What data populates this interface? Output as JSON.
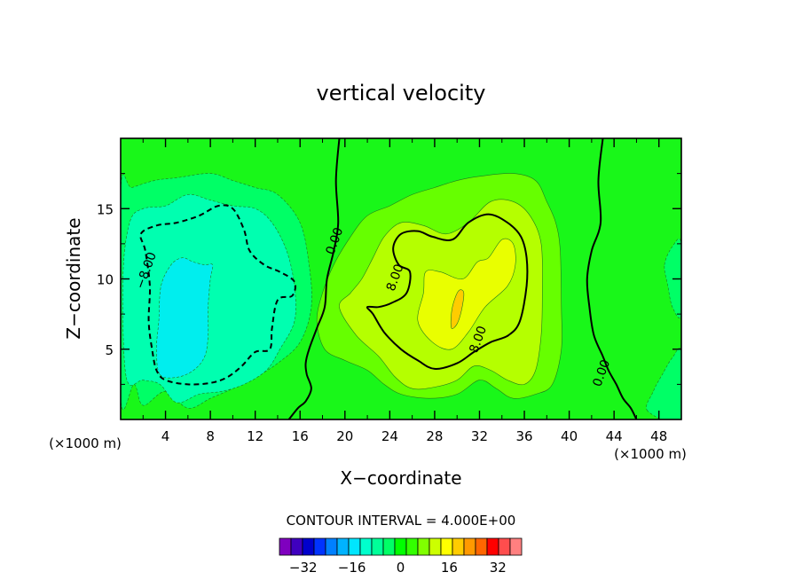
{
  "chart_data": {
    "type": "contour",
    "title": "vertical velocity",
    "xlabel": "X−coordinate",
    "ylabel": "Z−coordinate",
    "x_unit_left": "(×1000 m)",
    "x_unit_right": "(×1000 m)",
    "xlim": [
      0,
      50
    ],
    "ylim": [
      0,
      20
    ],
    "x_ticks": [
      4,
      8,
      12,
      16,
      20,
      24,
      28,
      32,
      36,
      40,
      44,
      48
    ],
    "y_ticks": [
      5,
      10,
      15
    ],
    "contour_interval_text": "CONTOUR INTERVAL = 4.000E+00",
    "contour_interval": 4,
    "contour_labels": [
      {
        "text": "−8.00",
        "x": 2.6,
        "y": 10.5
      },
      {
        "text": "0.00",
        "x": 19.4,
        "y": 12.6
      },
      {
        "text": "8.00",
        "x": 24.8,
        "y": 10.0
      },
      {
        "text": "8.00",
        "x": 32.2,
        "y": 5.6
      },
      {
        "text": "0.00",
        "x": 43.2,
        "y": 3.2
      }
    ],
    "colorbar": {
      "levels": [
        -36,
        -32,
        -28,
        -24,
        -20,
        -16,
        -12,
        -8,
        -4,
        0,
        4,
        8,
        12,
        16,
        20,
        24,
        28,
        32,
        36
      ],
      "colors": [
        "#7f00bf",
        "#3f00bf",
        "#0000cc",
        "#0033ff",
        "#0080ff",
        "#00b3ff",
        "#00e6ff",
        "#00ffcc",
        "#00ff99",
        "#00ff66",
        "#00ff00",
        "#33ff00",
        "#80ff00",
        "#ccff00",
        "#ffff00",
        "#ffcc00",
        "#ff9900",
        "#ff6600",
        "#ff0000",
        "#ff4d4d",
        "#ff8080"
      ],
      "tick_labels": [
        {
          "value": -32,
          "text": "−32"
        },
        {
          "value": -16,
          "text": "−16"
        },
        {
          "value": 0,
          "text": "0"
        },
        {
          "value": 16,
          "text": "16"
        },
        {
          "value": 32,
          "text": "32"
        }
      ]
    },
    "regions": [
      {
        "name": "background",
        "value": 2,
        "color": "#19f719",
        "path": [
          [
            0,
            0
          ],
          [
            50,
            0
          ],
          [
            50,
            20
          ],
          [
            0,
            20
          ]
        ]
      },
      {
        "name": "upper-left-negative",
        "value": -2,
        "color": "#00ff66",
        "path": [
          [
            0,
            1.5
          ],
          [
            1.2,
            2.5
          ],
          [
            2,
            1
          ],
          [
            4,
            2
          ],
          [
            6,
            0.8
          ],
          [
            8,
            1.5
          ],
          [
            10,
            2.2
          ],
          [
            12,
            3
          ],
          [
            14,
            4
          ],
          [
            16,
            5.5
          ],
          [
            17,
            8
          ],
          [
            16.8,
            11
          ],
          [
            16,
            14
          ],
          [
            14,
            16
          ],
          [
            12,
            16.5
          ],
          [
            10,
            17
          ],
          [
            8,
            17.5
          ],
          [
            5,
            17.2
          ],
          [
            3,
            17
          ],
          [
            1,
            16.5
          ],
          [
            0,
            16.3
          ]
        ]
      },
      {
        "name": "upper-left-neg6",
        "value": -6,
        "color": "#00ffb0",
        "path": [
          [
            0.5,
            3
          ],
          [
            2,
            2.8
          ],
          [
            3.5,
            2.5
          ],
          [
            5,
            1.2
          ],
          [
            7,
            1.8
          ],
          [
            9,
            2
          ],
          [
            11,
            2.5
          ],
          [
            13,
            3.5
          ],
          [
            14.2,
            5
          ],
          [
            15.5,
            7
          ],
          [
            15.5,
            9.5
          ],
          [
            14.8,
            12
          ],
          [
            13.5,
            14
          ],
          [
            12,
            15
          ],
          [
            10,
            15.2
          ],
          [
            8,
            15.6
          ],
          [
            6,
            16
          ],
          [
            4,
            15.2
          ],
          [
            2,
            15
          ],
          [
            0.8,
            14
          ],
          [
            0.2,
            10
          ]
        ]
      },
      {
        "name": "cyan-core",
        "value": -10,
        "color": "#00eeee",
        "path": [
          [
            3.5,
            3.2
          ],
          [
            5,
            3
          ],
          [
            6.5,
            3.5
          ],
          [
            7.5,
            4.5
          ],
          [
            7.8,
            6
          ],
          [
            7.8,
            8
          ],
          [
            8,
            10
          ],
          [
            8.2,
            11
          ],
          [
            7.5,
            11
          ],
          [
            6.5,
            11.2
          ],
          [
            5.5,
            11.5
          ],
          [
            4.5,
            11
          ],
          [
            3.6,
            9.5
          ],
          [
            3.4,
            7
          ],
          [
            3.2,
            5
          ]
        ]
      },
      {
        "name": "upper-right-positive",
        "value": 6,
        "color": "#66ff00",
        "path": [
          [
            17.5,
            7
          ],
          [
            18.2,
            5
          ],
          [
            20,
            4.2
          ],
          [
            22,
            3.5
          ],
          [
            23.5,
            2.5
          ],
          [
            25,
            1.8
          ],
          [
            27.5,
            1.5
          ],
          [
            30,
            1.8
          ],
          [
            32,
            2.8
          ],
          [
            33.5,
            2.2
          ],
          [
            35,
            1.5
          ],
          [
            37,
            1.8
          ],
          [
            38.5,
            2.5
          ],
          [
            39.3,
            5
          ],
          [
            39.3,
            8
          ],
          [
            39.2,
            12
          ],
          [
            38.8,
            14
          ],
          [
            38,
            15.5
          ],
          [
            37,
            17
          ],
          [
            35,
            17.5
          ],
          [
            32,
            17.3
          ],
          [
            30,
            17
          ],
          [
            28,
            16.5
          ],
          [
            26,
            16
          ],
          [
            24,
            15.2
          ],
          [
            22,
            14.5
          ],
          [
            20.5,
            13
          ],
          [
            19,
            11
          ],
          [
            18,
            9
          ]
        ]
      },
      {
        "name": "yellow-green-region",
        "value": 12,
        "color": "#b5ff00",
        "path": [
          [
            19.5,
            8
          ],
          [
            21,
            6
          ],
          [
            23,
            4.5
          ],
          [
            24.5,
            3
          ],
          [
            26,
            2.2
          ],
          [
            28,
            2.3
          ],
          [
            30,
            2.8
          ],
          [
            31.5,
            3.8
          ],
          [
            33,
            3.5
          ],
          [
            34.5,
            2.8
          ],
          [
            36,
            2.5
          ],
          [
            37,
            3.5
          ],
          [
            37.5,
            6
          ],
          [
            37.6,
            9
          ],
          [
            37.5,
            12.5
          ],
          [
            36.5,
            14.5
          ],
          [
            35,
            15.5
          ],
          [
            33,
            15.5
          ],
          [
            31,
            14
          ],
          [
            29,
            13.2
          ],
          [
            27,
            13.8
          ],
          [
            25,
            14
          ],
          [
            23.5,
            13
          ],
          [
            22.5,
            11.5
          ],
          [
            21.5,
            10
          ],
          [
            20.5,
            9
          ]
        ]
      },
      {
        "name": "yellow-core",
        "value": 16,
        "color": "#e9ff00",
        "path": [
          [
            26.5,
            7
          ],
          [
            27.8,
            5.5
          ],
          [
            29.5,
            5
          ],
          [
            31,
            6.2
          ],
          [
            32.5,
            8
          ],
          [
            34.5,
            9.5
          ],
          [
            35.2,
            11
          ],
          [
            35,
            12.5
          ],
          [
            34,
            12.8
          ],
          [
            32.8,
            11.5
          ],
          [
            31.8,
            11.2
          ],
          [
            30.5,
            10
          ],
          [
            28.5,
            10.5
          ],
          [
            27.2,
            10.5
          ],
          [
            27,
            9
          ]
        ]
      },
      {
        "name": "orange-core",
        "value": 20,
        "color": "#ffcc00",
        "path": [
          [
            29.5,
            6.5
          ],
          [
            30,
            6.8
          ],
          [
            30.4,
            7.8
          ],
          [
            30.6,
            9
          ],
          [
            30.2,
            9.2
          ],
          [
            29.8,
            8.6
          ],
          [
            29.5,
            7.6
          ]
        ]
      },
      {
        "name": "right-edge-negative",
        "value": -2,
        "color": "#00ff66",
        "path": [
          [
            48.5,
            11
          ],
          [
            49.2,
            12.3
          ],
          [
            50,
            12.5
          ],
          [
            50,
            7.5
          ],
          [
            49.2,
            8
          ],
          [
            48.8,
            9.5
          ]
        ]
      },
      {
        "name": "lower-right-negative",
        "value": -2,
        "color": "#00ff66",
        "path": [
          [
            47,
            0.6
          ],
          [
            47.5,
            2
          ],
          [
            48.3,
            3.2
          ],
          [
            49.2,
            4.4
          ],
          [
            50,
            4.8
          ],
          [
            50,
            0
          ]
        ]
      }
    ],
    "contour_lines": [
      {
        "value": 0,
        "style": "solid",
        "path": [
          [
            19.5,
            20
          ],
          [
            19.2,
            17
          ],
          [
            19.4,
            14
          ],
          [
            19,
            12
          ],
          [
            18.4,
            10
          ],
          [
            18.2,
            8
          ],
          [
            17.5,
            6.5
          ],
          [
            16.8,
            5
          ],
          [
            16.5,
            4
          ],
          [
            16.6,
            3.2
          ],
          [
            17,
            2.2
          ],
          [
            16.5,
            1.3
          ],
          [
            15.8,
            0.8
          ],
          [
            15,
            0
          ]
        ]
      },
      {
        "value": 0,
        "style": "solid",
        "path": [
          [
            43,
            20
          ],
          [
            42.6,
            17
          ],
          [
            42.8,
            14
          ],
          [
            42,
            12
          ],
          [
            41.6,
            10
          ],
          [
            41.8,
            8
          ],
          [
            42.2,
            6
          ],
          [
            43,
            4.5
          ],
          [
            43.5,
            3.5
          ],
          [
            44.2,
            2.5
          ],
          [
            44.8,
            1.5
          ],
          [
            45.5,
            0.8
          ],
          [
            46,
            0
          ]
        ]
      },
      {
        "value": 8,
        "style": "solid",
        "path": [
          [
            22,
            8
          ],
          [
            22.5,
            7.5
          ],
          [
            23.5,
            6.2
          ],
          [
            25,
            5
          ],
          [
            26.5,
            4.2
          ],
          [
            28,
            3.6
          ],
          [
            30,
            4
          ],
          [
            31.5,
            4.8
          ],
          [
            33,
            5.5
          ],
          [
            34.6,
            6
          ],
          [
            35.6,
            7
          ],
          [
            36.2,
            9.5
          ],
          [
            36.2,
            11.5
          ],
          [
            35.7,
            13
          ],
          [
            34.5,
            14
          ],
          [
            32.8,
            14.6
          ],
          [
            31,
            14
          ],
          [
            29.6,
            12.8
          ],
          [
            27.8,
            13
          ],
          [
            26.5,
            13.4
          ],
          [
            25,
            13.2
          ],
          [
            24.3,
            12.2
          ],
          [
            24.8,
            11
          ],
          [
            25.8,
            10.5
          ],
          [
            25.5,
            9
          ],
          [
            24.2,
            8.3
          ],
          [
            23,
            8
          ]
        ]
      },
      {
        "value": -8,
        "style": "dashed",
        "path": [
          [
            1.8,
            13.2
          ],
          [
            3.2,
            13.8
          ],
          [
            5,
            14
          ],
          [
            7,
            14.5
          ],
          [
            8.7,
            15.2
          ],
          [
            10,
            15
          ],
          [
            11,
            13.5
          ],
          [
            11.5,
            12
          ],
          [
            12.8,
            11
          ],
          [
            14.2,
            10.5
          ],
          [
            15.5,
            9.8
          ],
          [
            15.3,
            8.8
          ],
          [
            14,
            8.5
          ],
          [
            13.5,
            6.5
          ],
          [
            13.3,
            5
          ],
          [
            12,
            4.8
          ],
          [
            10.8,
            3.8
          ],
          [
            9.5,
            3
          ],
          [
            8,
            2.6
          ],
          [
            6,
            2.5
          ],
          [
            4,
            2.8
          ],
          [
            3.2,
            3.5
          ],
          [
            2.8,
            5
          ],
          [
            2.5,
            7
          ],
          [
            2.6,
            9.5
          ],
          [
            2.2,
            12
          ]
        ]
      }
    ]
  }
}
